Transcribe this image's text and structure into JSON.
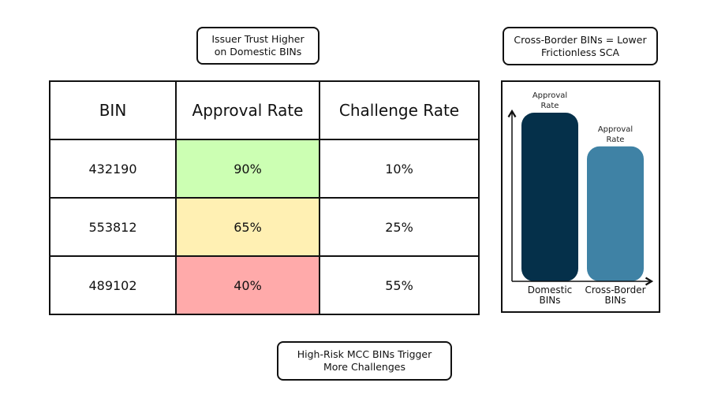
{
  "callouts": {
    "domestic": "Issuer Trust Higher\non Domestic BINs",
    "cross_border": "Cross-Border BINs = Lower\nFrictionless SCA",
    "high_risk": "High-Risk MCC BINs Trigger\nMore Challenges"
  },
  "table": {
    "headers": [
      "BIN",
      "Approval Rate",
      "Challenge Rate"
    ],
    "rows": [
      {
        "bin": "432190",
        "approval": "90%",
        "challenge": "10%",
        "approval_color": "#ccffb3"
      },
      {
        "bin": "553812",
        "approval": "65%",
        "challenge": "25%",
        "approval_color": "#fff0b3"
      },
      {
        "bin": "489102",
        "approval": "40%",
        "challenge": "55%",
        "approval_color": "#ffaaaa"
      }
    ]
  },
  "chart_data": {
    "type": "bar",
    "categories": [
      "Domestic BINs",
      "Cross-Border BINs"
    ],
    "bar_labels": [
      "Approval Rate",
      "Approval Rate"
    ],
    "values": [
      100,
      80
    ],
    "colors": [
      "#05304a",
      "#3f82a5"
    ]
  }
}
